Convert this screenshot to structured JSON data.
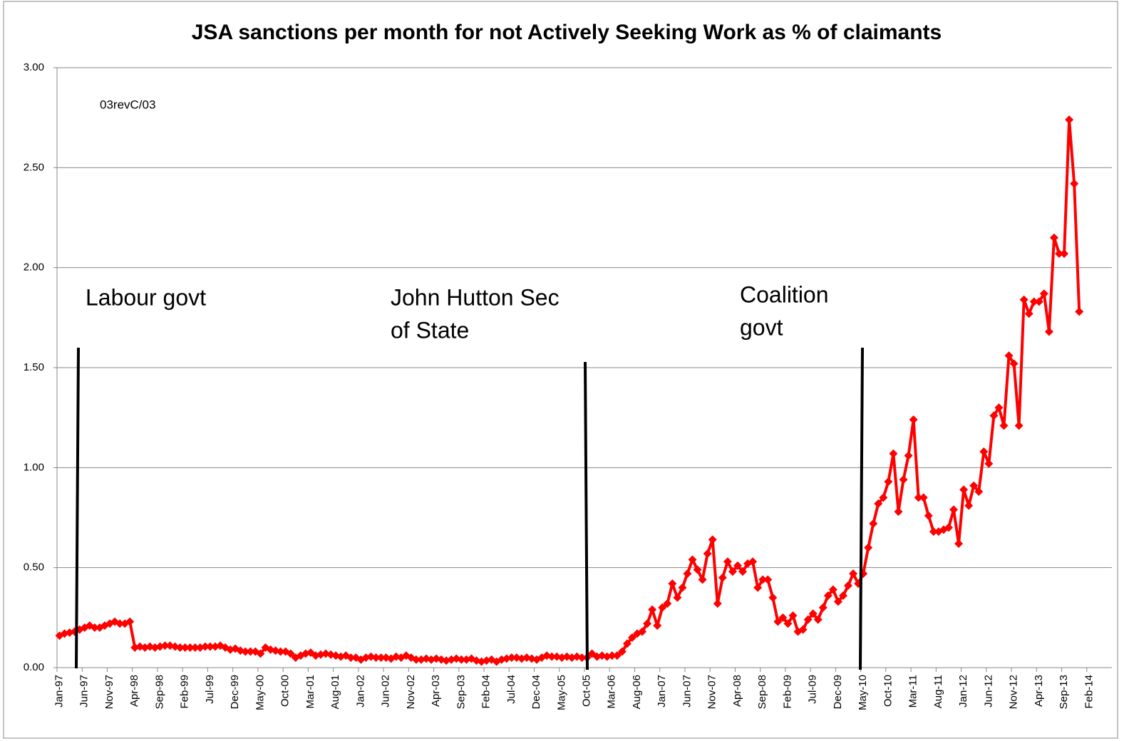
{
  "chart_data": {
    "type": "line",
    "title": "JSA sanctions per month for not Actively Seeking Work as % of claimants",
    "annotations": [
      [
        "03revC/03"
      ],
      [
        "Labour govt"
      ],
      [
        "John Hutton Sec",
        "of State"
      ],
      [
        "Coalition",
        "govt"
      ]
    ],
    "categories": [
      "Jan-97",
      null,
      null,
      null,
      null,
      "Jun-97",
      null,
      null,
      null,
      null,
      "Nov-97",
      null,
      null,
      null,
      null,
      "Apr-98",
      null,
      null,
      null,
      null,
      "Sep-98",
      null,
      null,
      null,
      null,
      "Feb-99",
      null,
      null,
      null,
      null,
      "Jul-99",
      null,
      null,
      null,
      null,
      "Dec-99",
      null,
      null,
      null,
      null,
      "May-00",
      null,
      null,
      null,
      null,
      "Oct-00",
      null,
      null,
      null,
      null,
      "Mar-01",
      null,
      null,
      null,
      null,
      "Aug-01",
      null,
      null,
      null,
      null,
      "Jan-02",
      null,
      null,
      null,
      null,
      "Jun-02",
      null,
      null,
      null,
      null,
      "Nov-02",
      null,
      null,
      null,
      null,
      "Apr-03",
      null,
      null,
      null,
      null,
      "Sep-03",
      null,
      null,
      null,
      null,
      "Feb-04",
      null,
      null,
      null,
      null,
      "Jul-04",
      null,
      null,
      null,
      null,
      "Dec-04",
      null,
      null,
      null,
      null,
      "May-05",
      null,
      null,
      null,
      null,
      "Oct-05",
      null,
      null,
      null,
      null,
      "Mar-06",
      null,
      null,
      null,
      null,
      "Aug-06",
      null,
      null,
      null,
      null,
      "Jan-07",
      null,
      null,
      null,
      null,
      "Jun-07",
      null,
      null,
      null,
      null,
      "Nov-07",
      null,
      null,
      null,
      null,
      "Apr-08",
      null,
      null,
      null,
      null,
      "Sep-08",
      null,
      null,
      null,
      null,
      "Feb-09",
      null,
      null,
      null,
      null,
      "Jul-09",
      null,
      null,
      null,
      null,
      "Dec-09",
      null,
      null,
      null,
      null,
      "May-10",
      null,
      null,
      null,
      null,
      "Oct-10",
      null,
      null,
      null,
      null,
      "Mar-11",
      null,
      null,
      null,
      null,
      "Aug-11",
      null,
      null,
      null,
      null,
      "Jan-12",
      null,
      null,
      null,
      null,
      "Jun-12",
      null,
      null,
      null,
      null,
      "Nov-12",
      null,
      null,
      null,
      null,
      "Apr-13",
      null,
      null,
      null,
      null,
      "Sep-13",
      null,
      null,
      null,
      null,
      "Feb-14",
      null,
      null,
      null,
      null
    ],
    "values": [
      0.16,
      0.17,
      0.175,
      0.18,
      0.19,
      0.2,
      0.21,
      0.2,
      0.2,
      0.21,
      0.22,
      0.23,
      0.22,
      0.22,
      0.23,
      0.1,
      0.105,
      0.1,
      0.105,
      0.1,
      0.105,
      0.11,
      0.11,
      0.105,
      0.1,
      0.1,
      0.1,
      0.1,
      0.1,
      0.105,
      0.105,
      0.105,
      0.11,
      0.1,
      0.09,
      0.095,
      0.085,
      0.08,
      0.08,
      0.08,
      0.07,
      0.1,
      0.09,
      0.085,
      0.08,
      0.08,
      0.07,
      0.05,
      0.06,
      0.07,
      0.075,
      0.06,
      0.065,
      0.07,
      0.065,
      0.06,
      0.055,
      0.06,
      0.05,
      0.05,
      0.04,
      0.05,
      0.055,
      0.05,
      0.05,
      0.05,
      0.045,
      0.055,
      0.05,
      0.06,
      0.05,
      0.04,
      0.04,
      0.045,
      0.04,
      0.045,
      0.04,
      0.035,
      0.04,
      0.045,
      0.04,
      0.04,
      0.045,
      0.035,
      0.03,
      0.035,
      0.04,
      0.03,
      0.04,
      0.045,
      0.05,
      0.05,
      0.045,
      0.05,
      0.045,
      0.04,
      0.05,
      0.06,
      0.055,
      0.055,
      0.05,
      0.055,
      0.05,
      0.055,
      0.05,
      0.05,
      0.07,
      0.055,
      0.06,
      0.055,
      0.06,
      0.06,
      0.08,
      0.12,
      0.15,
      0.17,
      0.18,
      0.22,
      0.29,
      0.21,
      0.3,
      0.32,
      0.42,
      0.35,
      0.4,
      0.47,
      0.54,
      0.49,
      0.44,
      0.57,
      0.64,
      0.32,
      0.45,
      0.53,
      0.48,
      0.51,
      0.48,
      0.52,
      0.53,
      0.4,
      0.44,
      0.44,
      0.35,
      0.23,
      0.25,
      0.22,
      0.26,
      0.18,
      0.19,
      0.24,
      0.27,
      0.24,
      0.3,
      0.36,
      0.39,
      0.33,
      0.36,
      0.41,
      0.47,
      0.42,
      0.47,
      0.6,
      0.72,
      0.82,
      0.85,
      0.93,
      1.07,
      0.78,
      0.94,
      1.06,
      1.24,
      0.85,
      0.85,
      0.76,
      0.68,
      0.68,
      0.69,
      0.7,
      0.79,
      0.62,
      0.89,
      0.81,
      0.91,
      0.88,
      1.08,
      1.02,
      1.26,
      1.3,
      1.21,
      1.56,
      1.52,
      1.21,
      1.84,
      1.77,
      1.83,
      1.83,
      1.87,
      1.68,
      2.15,
      2.07,
      2.07,
      2.74,
      2.42,
      1.78,
      null,
      null,
      null,
      null,
      null,
      null
    ],
    "color": "#ff0000",
    "ylim": [
      0,
      3
    ],
    "yticks": [
      {
        "value": 0,
        "label": "0.00"
      },
      {
        "value": 0.5,
        "label": "0.50"
      },
      {
        "value": 1,
        "label": "1.00"
      },
      {
        "value": 1.5,
        "label": "1.50"
      },
      {
        "value": 2,
        "label": "2.00"
      },
      {
        "value": 2.5,
        "label": "2.50"
      },
      {
        "value": 3,
        "label": "3.00"
      }
    ],
    "grid": true
  }
}
